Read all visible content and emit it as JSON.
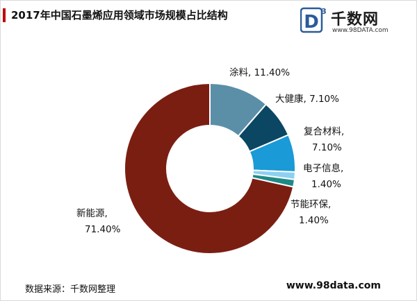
{
  "title": "2017年中国石墨烯应用领域市场规模占比结构",
  "logo": {
    "mark_letter": "D",
    "mark_superscript": "3",
    "name": "千数网",
    "url": "www.98DATA.com"
  },
  "source": "数据来源：千数网整理",
  "site": "www.98data.com",
  "chart_data": {
    "type": "pie",
    "donut": true,
    "slices": [
      {
        "name": "涂料",
        "value": 11.4,
        "label": "涂料, 11.40%",
        "color": "#5b8fa8"
      },
      {
        "name": "大健康",
        "value": 7.1,
        "label": "大健康, 7.10%",
        "color": "#0b4763"
      },
      {
        "name": "复合材料",
        "value": 7.1,
        "label_line1": "复合材料,",
        "label_line2": "7.10%",
        "color": "#1a9ad6"
      },
      {
        "name": "电子信息",
        "value": 1.4,
        "label_line1": "电子信息,",
        "label_line2": "1.40%",
        "color": "#8dd0f1"
      },
      {
        "name": "节能环保",
        "value": 1.4,
        "label_line1": "节能环保,",
        "label_line2": "1.40%",
        "color": "#1e8a86"
      },
      {
        "name": "新能源",
        "value": 71.4,
        "label_line1": "新能源,",
        "label_line2": "71.40%",
        "color": "#7b1e12"
      }
    ]
  }
}
